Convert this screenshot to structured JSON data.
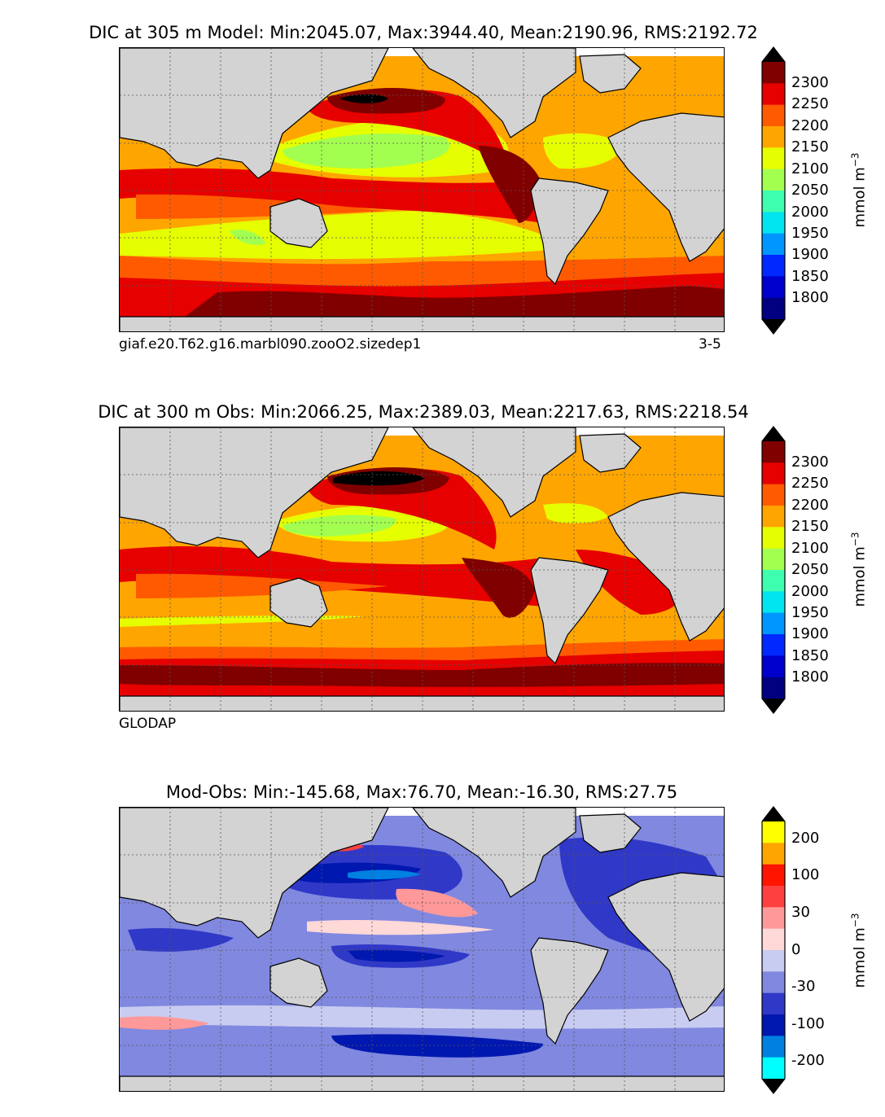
{
  "chart_data": [
    {
      "type": "heatmap",
      "title": "DIC at 305 m Model: Min:2045.07, Max:3944.40, Mean:2190.96, RMS:2192.72",
      "caption_left": "giaf.e20.T62.g16.marbl090.zooO2.sizedep1",
      "caption_right": "3-5",
      "colorbar_unit": "mmol m",
      "colorbar_unit_exponent": "−3",
      "colorbar_ticks": [
        "2300",
        "2250",
        "2200",
        "2150",
        "2100",
        "2050",
        "2000",
        "1950",
        "1900",
        "1850",
        "1800"
      ],
      "levels": [
        1750,
        1800,
        1850,
        1900,
        1950,
        2000,
        2050,
        2100,
        2150,
        2200,
        2250,
        2300,
        2350
      ],
      "colors": [
        "#000080",
        "#0000cd",
        "#0028ff",
        "#0096ff",
        "#00e5f0",
        "#3dffaf",
        "#a2ff4f",
        "#e6ff00",
        "#ffa500",
        "#ff5a00",
        "#e60000",
        "#800000"
      ],
      "extend_colors": [
        "#000000",
        "#000000"
      ]
    },
    {
      "type": "heatmap",
      "title": "DIC at 300 m Obs: Min:2066.25, Max:2389.03, Mean:2217.63, RMS:2218.54",
      "caption_left": "GLODAP",
      "colorbar_unit": "mmol m",
      "colorbar_unit_exponent": "−3",
      "colorbar_ticks": [
        "2300",
        "2250",
        "2200",
        "2150",
        "2100",
        "2050",
        "2000",
        "1950",
        "1900",
        "1850",
        "1800"
      ],
      "levels": [
        1750,
        1800,
        1850,
        1900,
        1950,
        2000,
        2050,
        2100,
        2150,
        2200,
        2250,
        2300,
        2350
      ],
      "colors": [
        "#000080",
        "#0000cd",
        "#0028ff",
        "#0096ff",
        "#00e5f0",
        "#3dffaf",
        "#a2ff4f",
        "#e6ff00",
        "#ffa500",
        "#ff5a00",
        "#e60000",
        "#800000"
      ],
      "extend_colors": [
        "#000000",
        "#000000"
      ]
    },
    {
      "type": "heatmap",
      "title": "Mod-Obs: Min:-145.68, Max:76.70, Mean:-16.30, RMS:27.75",
      "colorbar_unit": "mmol m",
      "colorbar_unit_exponent": "−3",
      "colorbar_ticks": [
        "200",
        "100",
        "30",
        "0",
        "-30",
        "-100",
        "-200"
      ],
      "levels": [
        -300,
        -200,
        -100,
        -50,
        -30,
        -10,
        0,
        10,
        30,
        50,
        100,
        200,
        300
      ],
      "colors": [
        "#00ffff",
        "#0080e0",
        "#0018b0",
        "#3038c8",
        "#8088e0",
        "#c8ccf0",
        "#ffd8d8",
        "#ff9999",
        "#ff4040",
        "#ff1400",
        "#ffa500",
        "#ffff00"
      ],
      "extend_colors": [
        "#000000",
        "#000000"
      ]
    }
  ]
}
